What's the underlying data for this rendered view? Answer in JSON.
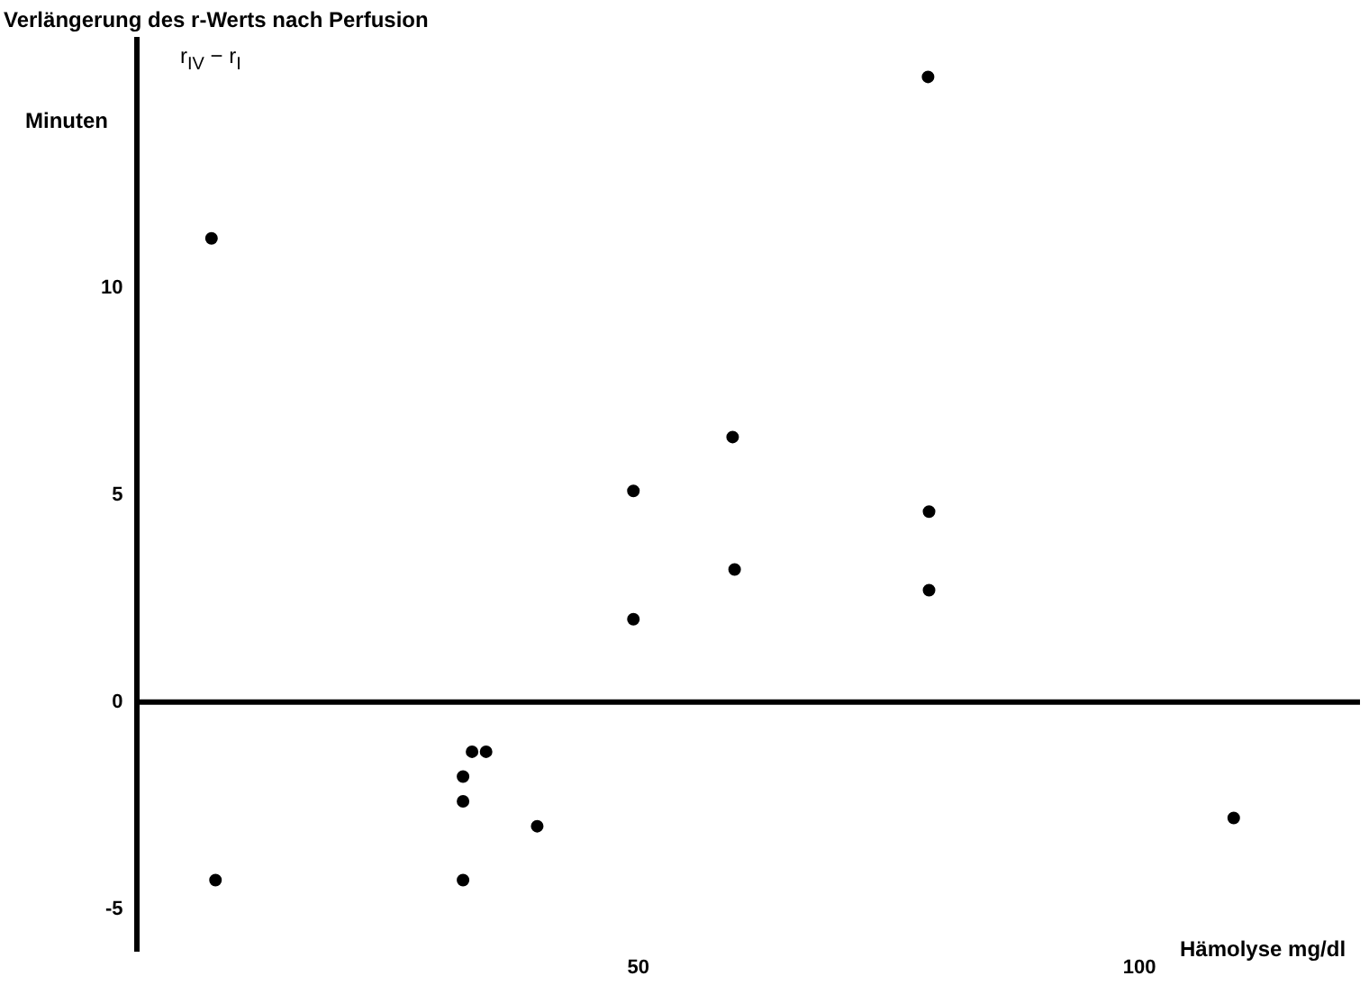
{
  "chart_data": {
    "type": "scatter",
    "title": "Verlängerung des r-Werts nach Perfusion",
    "subtitle": "r$_{IV}$ − r$_{I}$",
    "ylabel": "Minuten",
    "xlabel": "Hämolyse mg/dl",
    "x": [
      7.4,
      78.9,
      59.4,
      49.5,
      79,
      59.6,
      79,
      49.5,
      33.4,
      34.8,
      32.5,
      32.5,
      39.9,
      109.4,
      7.8,
      32.5
    ],
    "values": [
      11.2,
      15.1,
      6.4,
      5.1,
      4.6,
      3.2,
      2.7,
      2.0,
      -1.2,
      -1.2,
      -1.8,
      -2.4,
      -3.0,
      -2.8,
      -4.3,
      -4.3
    ],
    "color": "#000000",
    "marker": "circle",
    "xlim": [
      0,
      122
    ],
    "xticks": [
      50,
      100
    ],
    "ylim": [
      -6,
      16
    ],
    "yticks": [
      -5,
      0,
      5,
      10
    ],
    "grid": false,
    "legend": false,
    "ref_lines": [
      {
        "axis": "y",
        "value": 0,
        "color": "#000000"
      }
    ]
  }
}
